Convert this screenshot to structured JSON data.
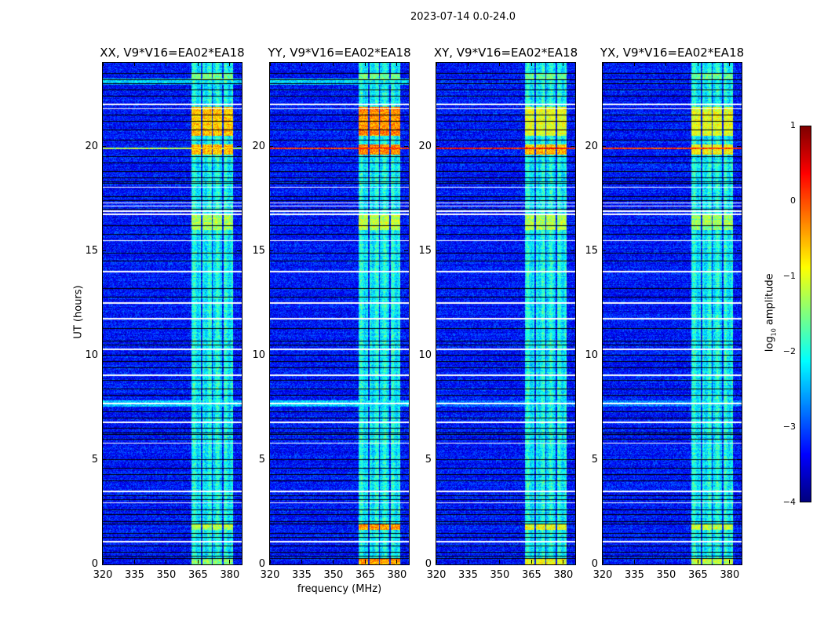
{
  "chart_data": {
    "type": "heatmap",
    "title": "2023-07-14 0.0-24.0",
    "xlabel": "frequency (MHz)",
    "ylabel": "UT (hours)",
    "xlim": [
      320,
      385.6
    ],
    "ylim": [
      0,
      24
    ],
    "xticks": [
      "320",
      "335",
      "350",
      "365",
      "380"
    ],
    "yticks": [
      "0",
      "5",
      "10",
      "15",
      "20"
    ],
    "panels": [
      {
        "title": "XX, V9*V16=EA02*EA18"
      },
      {
        "title": "YY, V9*V16=EA02*EA18"
      },
      {
        "title": "XY, V9*V16=EA02*EA18"
      },
      {
        "title": "YX, V9*V16=EA02*EA18"
      }
    ],
    "background_level_log10": -3.3,
    "band_level_log10": -2.1,
    "subbands_mhz": [
      [
        362,
        366.5
      ],
      [
        367,
        371.5
      ],
      [
        372,
        376.5
      ],
      [
        377,
        381.5
      ]
    ],
    "flagged_white_hours": [
      1.09,
      2.95,
      3.5,
      5.8,
      6.8,
      7.7,
      9.05,
      10.3,
      11.75,
      12.5,
      14.0,
      15.5,
      16.75,
      16.9,
      17.15,
      17.3,
      18.05,
      21.8,
      22.0
    ],
    "flagged_black_hours": [
      0.3,
      0.4,
      0.6,
      0.9,
      1.3,
      1.5,
      1.95,
      2.05,
      2.4,
      2.6,
      3.1,
      3.3,
      4.0,
      4.3,
      4.6,
      5.0,
      6.0,
      6.2,
      6.3,
      6.5,
      7.0,
      7.3,
      8.1,
      8.4,
      8.8,
      9.4,
      9.7,
      10.0,
      10.5,
      10.7,
      11.3,
      12.8,
      13.2,
      14.5,
      14.9,
      15.8,
      16.2,
      17.0,
      17.4,
      17.6,
      18.25,
      18.3,
      18.5,
      18.8,
      19.2,
      19.5,
      20.3,
      20.8,
      21.2,
      21.5,
      22.4,
      22.7,
      23.0,
      23.2,
      23.5
    ],
    "features": [
      {
        "t": [
          23.2,
          23.5
        ],
        "scope": "band",
        "levels": [
          -1.5,
          -1.5,
          -1.6,
          -1.6
        ]
      },
      {
        "t": [
          22.95,
          23.25
        ],
        "scope": "full",
        "levels": [
          -2.4,
          -2.3,
          -3.2,
          -3.2
        ]
      },
      {
        "t": [
          20.5,
          21.9
        ],
        "scope": "band",
        "levels": [
          -0.6,
          -0.3,
          -1.0,
          -1.0
        ]
      },
      {
        "t": [
          19.6,
          20.1
        ],
        "scope": "band",
        "levels": [
          -0.5,
          -0.3,
          -0.6,
          -0.9
        ]
      },
      {
        "t": [
          19.86,
          19.96
        ],
        "scope": "full",
        "levels": [
          -1.2,
          0.2,
          0.2,
          0.2
        ]
      },
      {
        "t": [
          16.0,
          16.7
        ],
        "scope": "band",
        "levels": [
          -1.3,
          -1.2,
          -1.3,
          -1.4
        ]
      },
      {
        "t": [
          7.55,
          7.85
        ],
        "scope": "full",
        "levels": [
          -2.4,
          -2.3,
          -2.8,
          -2.8
        ]
      },
      {
        "t": [
          1.65,
          1.95
        ],
        "scope": "band",
        "levels": [
          -1.3,
          -0.4,
          -1.0,
          -1.2
        ]
      },
      {
        "t": [
          0.0,
          0.3
        ],
        "scope": "band",
        "levels": [
          -1.4,
          -0.4,
          -0.9,
          -1.2
        ]
      }
    ],
    "colorbar": {
      "colormap": "jet",
      "range": [
        -4,
        1
      ],
      "ticks": [
        "−4",
        "−3",
        "−2",
        "−1",
        "0",
        "1"
      ],
      "label_prefix": "log",
      "label_sub": "10",
      "label_suffix": " amplitude"
    }
  }
}
